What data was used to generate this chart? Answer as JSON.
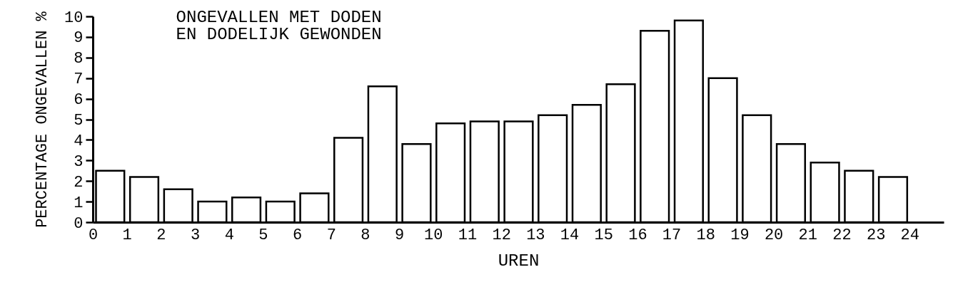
{
  "chart_data": {
    "type": "histogram",
    "title": "ONGEVALLEN MET DODEN\nEN DODELIJK GEWONDEN",
    "xlabel": "UREN",
    "ylabel": "PERCENTAGE ONGEVALLEN %",
    "bins": [
      0,
      1,
      2,
      3,
      4,
      5,
      6,
      7,
      8,
      9,
      10,
      11,
      12,
      13,
      14,
      15,
      16,
      17,
      18,
      19,
      20,
      21,
      22,
      23,
      24
    ],
    "values": [
      2.5,
      2.2,
      1.6,
      1.0,
      1.2,
      1.0,
      1.4,
      4.1,
      6.6,
      3.8,
      4.8,
      4.9,
      4.9,
      5.2,
      5.7,
      6.7,
      9.3,
      9.8,
      7.0,
      5.2,
      3.8,
      2.9,
      2.5,
      2.2
    ],
    "color": "#ffffff",
    "xlim": [
      0,
      25
    ],
    "xticks": [
      0,
      1,
      2,
      3,
      4,
      5,
      6,
      7,
      8,
      9,
      10,
      11,
      12,
      13,
      14,
      15,
      16,
      17,
      18,
      19,
      20,
      21,
      22,
      23,
      24
    ],
    "ylim": [
      0,
      10
    ],
    "yticks": [
      0,
      1,
      2,
      3,
      4,
      5,
      6,
      7,
      8,
      9,
      10
    ],
    "grid": false
  }
}
